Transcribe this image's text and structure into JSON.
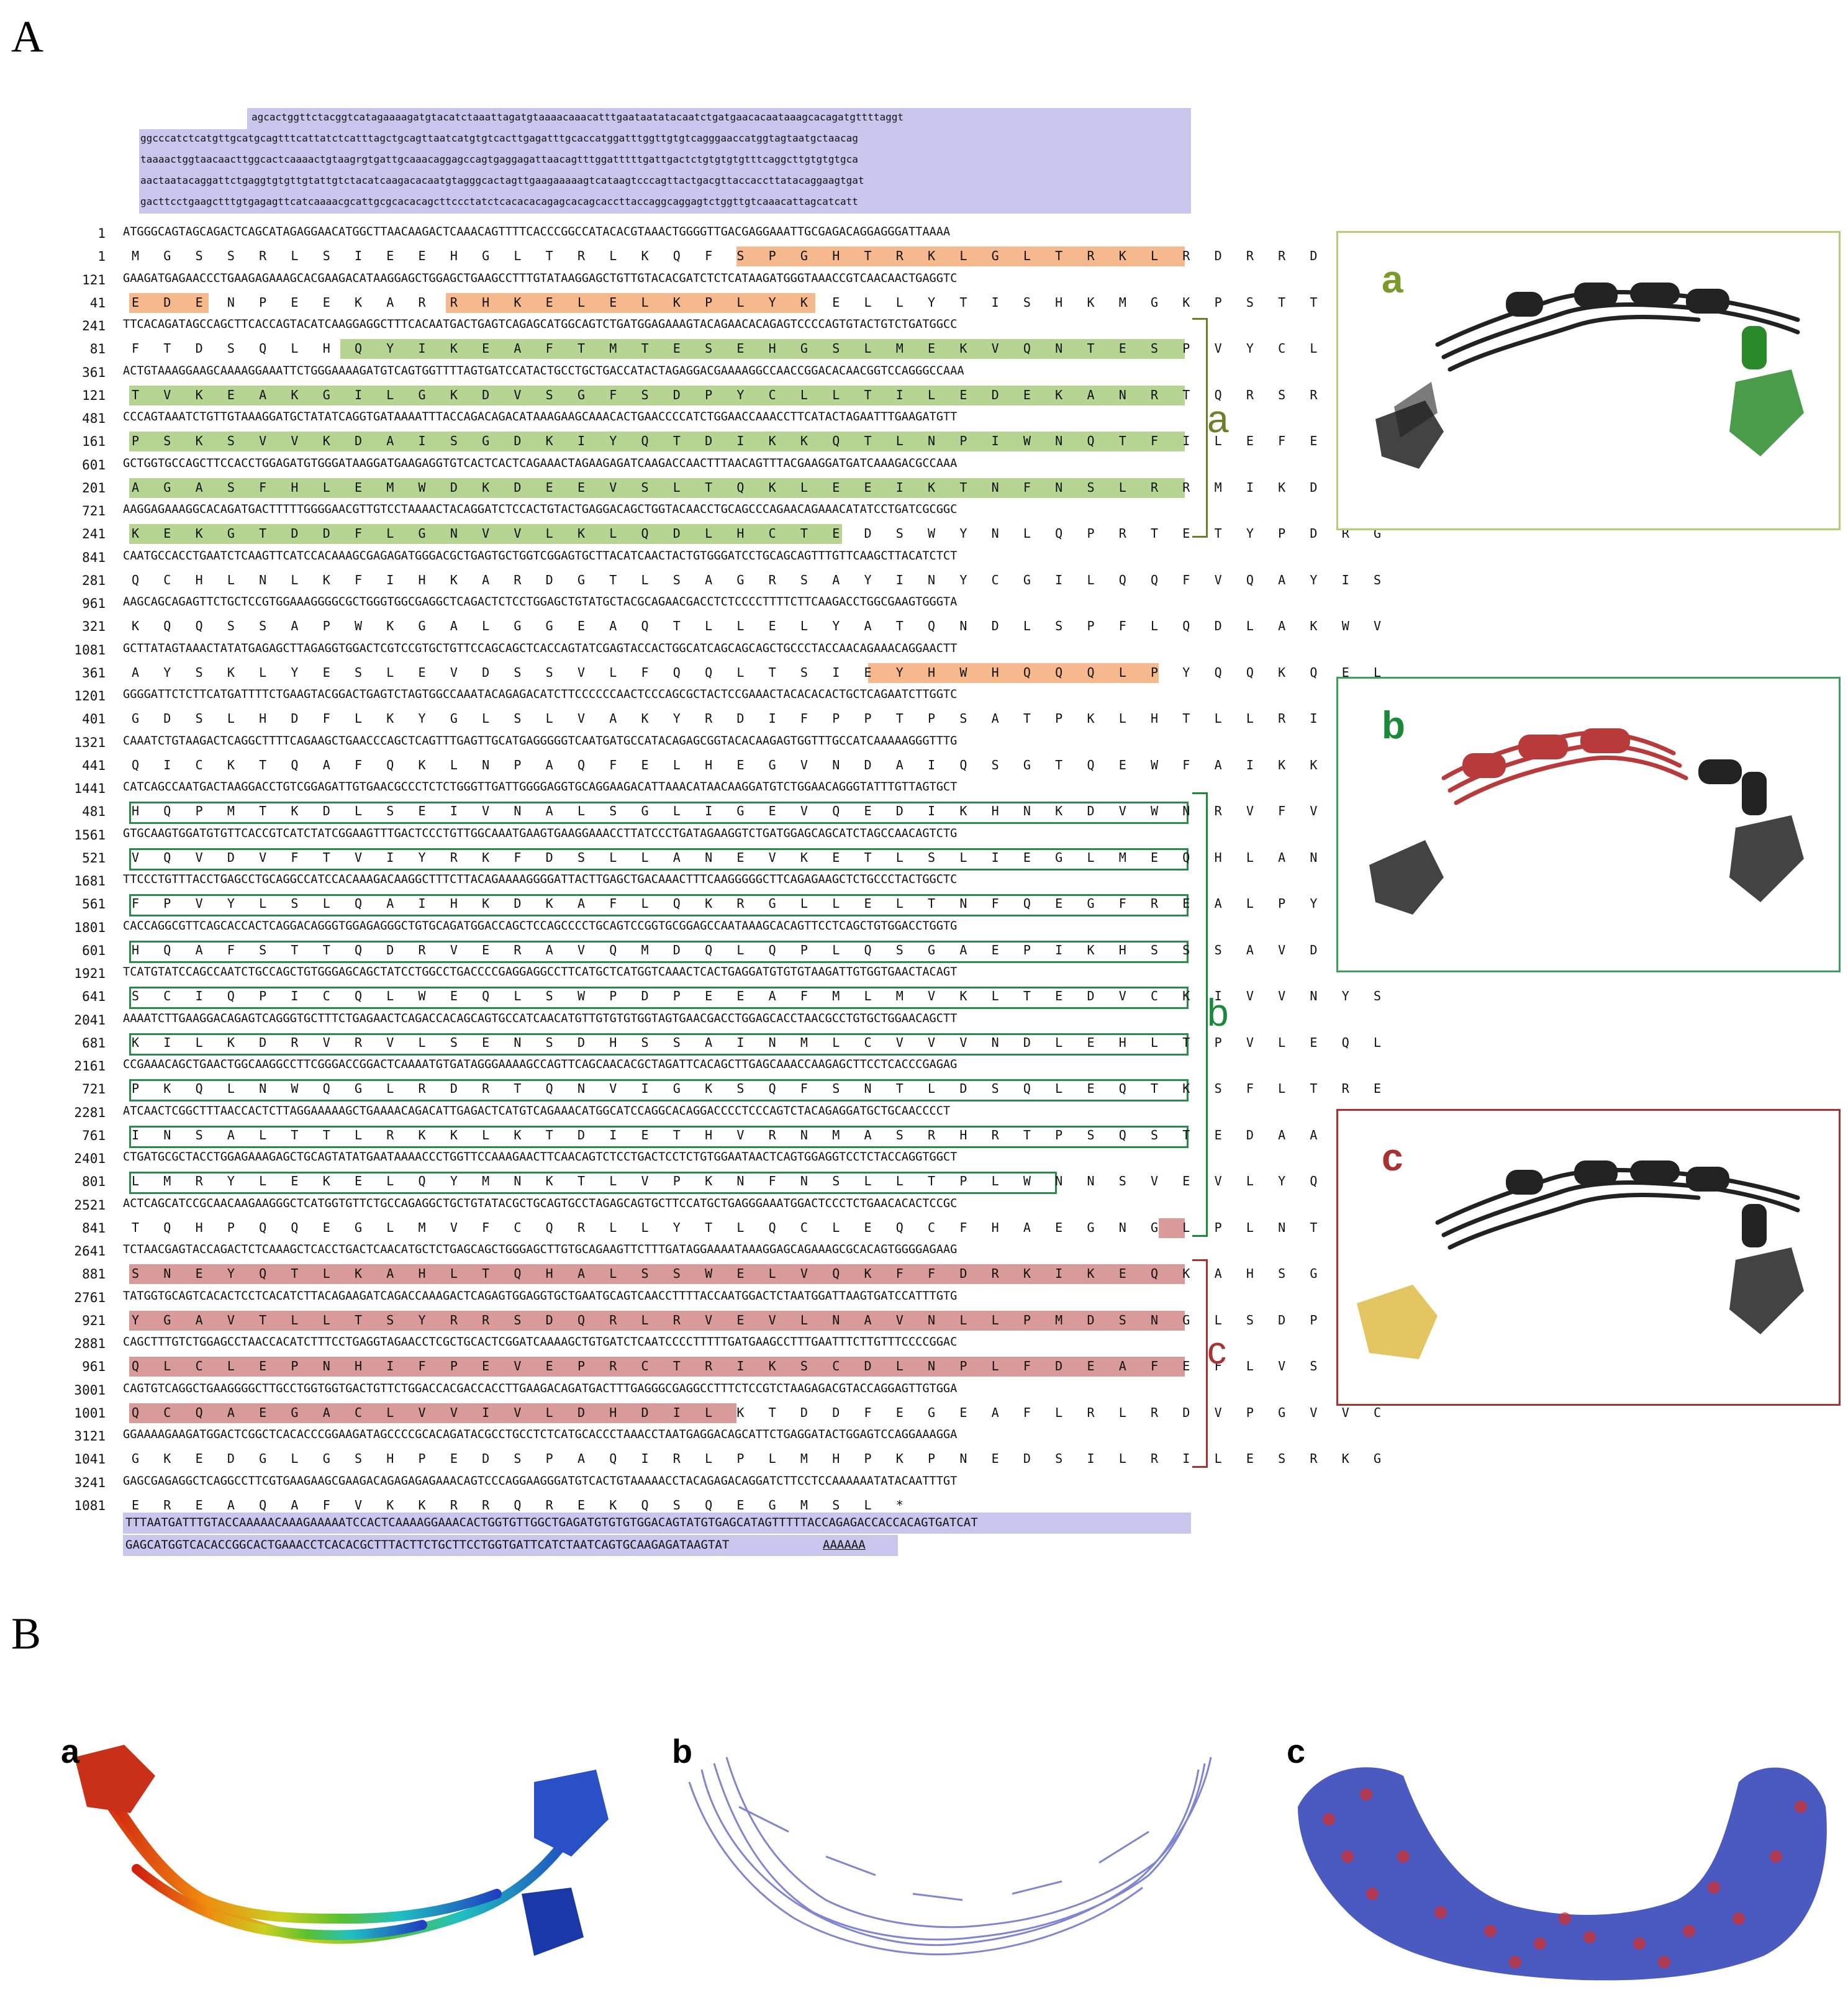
{
  "panels": {
    "A": "A",
    "B": "B"
  },
  "utr5": [
    "agcactggttctacggtcatagaaaagatgtacatctaaattagatgtaaaacaaacatttgaataatatacaatctgatgaacacaataaagcacagatgttttaggt",
    "ggcccatctcatgttgcatgcagtttcattatctcatttagctgcagttaatcatgtgtcacttgagatttgcaccatggatttggttgtgtcagggaaccatggtagtaatgctaacag",
    "taaaactggtaacaacttggcactcaaaactgtaagrgtgattgcaaacaggagccagtgaggagattaacagtttggatttttgattgactctgtgtgtgtttcaggcttgtgtgtgca",
    "aactaatacaggattctgaggtgtgttgtattgtctacatcaagacacaatgtagggcactagttgaagaaaaagtcataagtcccagttactgacgttaccaccttatacaggaagtgat",
    "gacttcctgaagctttgtgagagttcatcaaaacgcattgcgcacacagcttccctatctcacacacagagcacagcaccttaccaggcaggagtctggttgtcaaacattagcatcatt"
  ],
  "seq_rows": [
    {
      "n": "1",
      "t": "ATGGGCAGTAGCAGACTCAGCATAGAGGAACATGGCTTAACAAGACTCAAACAGTTTTCACCCGGCCATACACGTAAACTGGGGTTGACGAGGAAATTGCGAGACAGGAGGGATTAAAA",
      "aa": false
    },
    {
      "n": "1",
      "t": "M G S S R L S I E E H G L T R L K Q F S P G H T R K L G L T R K L R D R R D L K",
      "aa": true
    },
    {
      "n": "121",
      "t": "GAAGATGAGAACCCTGAAGAGAAAGCACGAAGACATAAGGAGCTGGAGCTGAAGCCTTTGTATAAGGAGCTGTTGTACACGATCTCTCATAAGATGGGTAAACCGTCAACAACTGAGGTC",
      "aa": false
    },
    {
      "n": "41",
      "t": "E D E N P E E K A R R H K E L E L K P L Y K E L L Y T I S H K M G K P S T T E V",
      "aa": true
    },
    {
      "n": "241",
      "t": "TTCACAGATAGCCAGCTTCACCAGTACATCAAGGAGGCTTTCACAATGACTGAGTCAGAGCATGGCAGTCTGATGGAGAAAGTACAGAACACAGAGTCCCCAGTGTACTGTCTGATGGCC",
      "aa": false
    },
    {
      "n": "81",
      "t": "F T D S Q L H Q Y I K E A F T M T E S E H G S L M E K V Q N T E S P V Y C L M A",
      "aa": true
    },
    {
      "n": "361",
      "t": "ACTGTAAAGGAAGCAAAAGGAAATTCTGGGAAAAGATGTCAGTGGTTTTAGTGATCCATACTGCCTGCTGACCATACTAGAGGACGAAAAGGCCAACCGGACACAACGGTCCAGGGCCAAA",
      "aa": false
    },
    {
      "n": "121",
      "t": "T V K E A K G I L G K D V S G F S D P Y C L L T I L E D E K A N R T Q R S R A K",
      "aa": true
    },
    {
      "n": "481",
      "t": "CCCAGTAAATCTGTTGTAAAGGATGCTATATCAGGTGATAAAATTTACCAGACAGACATAAAGAAGCAAACACTGAACCCCATCTGGAACCAAACCTTCATACTAGAATTTGAAGATGTT",
      "aa": false
    },
    {
      "n": "161",
      "t": "P S K S V V K D A I S G D K I Y Q T D I K K Q T L N P I W N Q T F I L E F E D V",
      "aa": true
    },
    {
      "n": "601",
      "t": "GCTGGTGCCAGCTTCCACCTGGAGATGTGGGATAAGGATGAAGAGGTGTCACTCACTCAGAAACTAGAAGAGATCAAGACCAACTTTAACAGTTTACGAAGGATGATCAAAGACGCCAAA",
      "aa": false
    },
    {
      "n": "201",
      "t": "A G A S F H L E M W D K D E E V S L T Q K L E E I K T N F N S L R R M I K D A K",
      "aa": true
    },
    {
      "n": "721",
      "t": "AAGGAGAAAGGCACAGATGACTTTTTGGGGAACGTTGTCCTAAAACTACAGGATCTCCACTGTACTGAGGACAGCTGGTACAACCTGCAGCCCAGAACAGAAACATATCCTGATCGCGGC",
      "aa": false
    },
    {
      "n": "241",
      "t": "K E K G T D D F L G N V V L K L Q D L H C T E D S W Y N L Q P R T E T Y P D R G",
      "aa": true
    },
    {
      "n": "841",
      "t": "CAATGCCACCTGAATCTCAAGTTCATCCACAAAGCGAGAGATGGGACGCTGAGTGCTGGTCGGAGTGCTTACATCAACTACTGTGGGATCCTGCAGCAGTTTGTTCAAGCTTACATCTCT",
      "aa": false
    },
    {
      "n": "281",
      "t": "Q C H L N L K F I H K A R D G T L S A G R S A Y I N Y C G I L Q Q F V Q A Y I S",
      "aa": true
    },
    {
      "n": "961",
      "t": "AAGCAGCAGAGTTCTGCTCCGTGGAAAGGGGCGCTGGGTGGCGAGGCTCAGACTCTCCTGGAGCTGTATGCTACGCAGAACGACCTCTCCCCTTTTCTTCAAGACCTGGCGAAGTGGGTA",
      "aa": false
    },
    {
      "n": "321",
      "t": "K Q Q S S A P W K G A L G G E A Q T L L E L Y A T Q N D L S P F L Q D L A K W V",
      "aa": true
    },
    {
      "n": "1081",
      "t": "GCTTATAGTAAACTATATGAGAGCTTAGAGGTGGACTCGTCCGTGCTGTTCCAGCAGCTCACCAGTATCGAGTACCACTGGCATCAGCAGCAGCTGCCCTACCAACAGAAACAGGAACTT",
      "aa": false
    },
    {
      "n": "361",
      "t": "A Y S K L Y E S L E V D S S V L F Q Q L T S I E Y H W H Q Q Q L P Y Q Q K Q E L",
      "aa": true
    },
    {
      "n": "1201",
      "t": "GGGGATTCTCTTCATGATTTTCTGAAGTACGGACTGAGTCTAGTGGCCAAATACAGAGACATCTTCCCCCCAACTCCCAGCGCTACTCCGAAACTACACACACTGCTCAGAATCTTGGTC",
      "aa": false
    },
    {
      "n": "401",
      "t": "G D S L H D F L K Y G L S L V A K Y R D I F P P T P S A T P K L H T L L R I L V",
      "aa": true
    },
    {
      "n": "1321",
      "t": "CAAATCTGTAAGACTCAGGCTTTTCAGAAGCTGAACCCAGCTCAGTTTGAGTTGCATGAGGGGGTCAATGATGCCATACAGAGCGGTACACAAGAGTGGTTTGCCATCAAAAAGGGTTTG",
      "aa": false
    },
    {
      "n": "441",
      "t": "Q I C K T Q A F Q K L N P A Q F E L H E G V N D A I Q S G T Q E W F A I K K G L",
      "aa": true
    },
    {
      "n": "1441",
      "t": "CATCAGCCAATGACTAAGGACCTGTCGGAGATTGTGAACGCCCTCTCTGGGTTGATTGGGGAGGTGCAGGAAGACATTAAACATAACAAGGATGTCTGGAACAGGGTATTTGTTAGTGCT",
      "aa": false
    },
    {
      "n": "481",
      "t": "H Q P M T K D L S E I V N A L S G L I G E V Q E D I K H N K D V W N R V F V S A",
      "aa": true
    },
    {
      "n": "1561",
      "t": "GTGCAAGTGGATGTGTTCACCGTCATCTATCGGAAGTTTGACTCCCTGTTGGCAAATGAAGTGAAGGAAACCTTATCCCTGATAGAAGGTCTGATGGAGCAGCATCTAGCCAACAGTCTG",
      "aa": false
    },
    {
      "n": "521",
      "t": "V Q V D V F T V I Y R K F D S L L A N E V K E T L S L I E G L M E Q H L A N S L",
      "aa": true
    },
    {
      "n": "1681",
      "t": "TTCCCTGTTTACCTGAGCCTGCAGGCCATCCACAAAGACAAGGCTTTCTTACAGAAAAGGGGATTACTTGAGCTGACAAACTTTCAAGGGGGCTTCAGAGAAGCTCTGCCCTACTGGCTC",
      "aa": false
    },
    {
      "n": "561",
      "t": "F P V Y L S L Q A I H K D K A F L Q K R G L L E L T N F Q E G F R E A L P Y W L",
      "aa": true
    },
    {
      "n": "1801",
      "t": "CACCAGGCGTTCAGCACCACTCAGGACAGGGTGGAGAGGGCTGTGCAGATGGACCAGCTCCAGCCCCTGCAGTCCGGTGCGGAGCCAATAAAGCACAGTTCCTCAGCTGTGGACCTGGTG",
      "aa": false
    },
    {
      "n": "601",
      "t": "H Q A F S T T Q D R V E R A V Q M D Q L Q P L Q S G A E P I K H S S S A V D L V",
      "aa": true
    },
    {
      "n": "1921",
      "t": "TCATGTATCCAGCCAATCTGCCAGCTGTGGGAGCAGCTATCCTGGCCTGACCCCGAGGAGGCCTTCATGCTCATGGTCAAACTCACTGAGGATGTGTGTAAGATTGTGGTGAACTACAGT",
      "aa": false
    },
    {
      "n": "641",
      "t": "S C I Q P I C Q L W E Q L S W P D P E E A F M L M V K L T E D V C K I V V N Y S",
      "aa": true
    },
    {
      "n": "2041",
      "t": "AAAATCTTGAAGGACAGAGTCAGGGTGCTTTCTGAGAACTCAGACCACAGCAGTGCCATCAACATGTTGTGTGTGGTAGTGAACGACCTGGAGCACCTAACGCCTGTGCTGGAACAGCTT",
      "aa": false
    },
    {
      "n": "681",
      "t": "K I L K D R V R V L S E N S D H S S A I N M L C V V V N D L E H L T P V L E Q L",
      "aa": true
    },
    {
      "n": "2161",
      "t": "CCGAAACAGCTGAACTGGCAAGGCCTTCGGGACCGGACTCAAAATGTGATAGGGAAAAGCCAGTTCAGCAACACGCTAGATTCACAGCTTGAGCAAACCAAGAGCTTCCTCACCCGAGAG",
      "aa": false
    },
    {
      "n": "721",
      "t": "P K Q L N W Q G L R D R T Q N V I G K S Q F S N T L D S Q L E Q T K S F L T R E",
      "aa": true
    },
    {
      "n": "2281",
      "t": "ATCAACTCGGCTTTAACCACTCTTAGGAAAAAGCTGAAAACAGACATTGAGACTCATGTCAGAAACATGGCATCCAGGCACAGGACCCCTCCCAGTCTACAGAGGATGCTGCAACCCCT",
      "aa": false
    },
    {
      "n": "761",
      "t": "I N S A L T T L R K K L K T D I E T H V R N M A S R H R T P S Q S T E D A A T P",
      "aa": true
    },
    {
      "n": "2401",
      "t": "CTGATGCGCTACCTGGAGAAAGAGCTGCAGTATATGAATAAAACCCTGGTTCCAAAGAACTTCAACAGTCTCCTGACTCCTCTGTGGAATAACTCAGTGGAGGTCCTCTACCAGGTGGCT",
      "aa": false
    },
    {
      "n": "801",
      "t": "L M R Y L E K E L Q Y M N K T L V P K N F N S L L T P L W N N S V E V L Y Q V A",
      "aa": true
    },
    {
      "n": "2521",
      "t": "ACTCAGCATCCGCAACAAGAAGGGCTCATGGTGTTCTGCCAGAGGCTGCTGTATACGCTGCAGTGCCTAGAGCAGTGCTTCCATGCTGAGGGAAATGGACTCCCTCTGAACACACTCCGC",
      "aa": false
    },
    {
      "n": "841",
      "t": "T Q H P Q Q E G L M V F C Q R L L Y T L Q C L E Q C F H A E G N G L P L N T L R",
      "aa": true
    },
    {
      "n": "2641",
      "t": "TCTAACGAGTACCAGACTCTCAAAGCTCACCTGACTCAACATGCTCTGAGCAGCTGGGAGCTTGTGCAGAAGTTCTTTGATAGGAAAATAAAGGAGCAGAAAGCGCACAGTGGGGAGAAG",
      "aa": false
    },
    {
      "n": "881",
      "t": "S N E Y Q T L K A H L T Q H A L S S W E L V Q K F F D R K I K E Q K A H S G E K",
      "aa": true
    },
    {
      "n": "2761",
      "t": "TATGGTGCAGTCACACTCCTCACATCTTACAGAAGATCAGACCAAAGACTCAGAGTGGAGGTGCTGAATGCAGTCAACCTTTTACCAATGGACTCTAATGGATTAAGTGATCCATTTGTG",
      "aa": false
    },
    {
      "n": "921",
      "t": "Y G A V T L L T S Y R R S D Q R L R V E V L N A V N L L P M D S N G L S D P F V",
      "aa": true
    },
    {
      "n": "2881",
      "t": "CAGCTTTGTCTGGAGCCTAACCACATCTTTCCTGAGGTAGAACCTCGCTGCACTCGGATCAAAAGCTGTGATCTCAATCCCCTTTTTGATGAAGCCTTTGAATTTCTTGTTTCCCCGGAC",
      "aa": false
    },
    {
      "n": "961",
      "t": "Q L C L E P N H I F P E V E P R C T R I K S C D L N P L F D E A F E F L V S P D",
      "aa": true
    },
    {
      "n": "3001",
      "t": "CAGTGTCAGGCTGAAGGGGCTTGCCTGGTGGTGACTGTTCTGGACCACGACCACCTTGAAGACAGATGACTTTGAGGGCGAGGCCTTTCTCCGTCTAAGAGACGTACCAGGAGTTGTGGA",
      "aa": false
    },
    {
      "n": "1001",
      "t": "Q C Q A E G A C L V V I V L D H D I L K T D D F E G E A F L R L R D V P G V V C",
      "aa": true
    },
    {
      "n": "3121",
      "t": "GGAAAAGAAGATGGACTCGGCTCACACCCGGAAGATAGCCCCGCACAGATACGCCTGCCTCTCATGCACCCTAAACCTAATGAGGACAGCATTCTGAGGATACTGGAGTCCAGGAAAGGA",
      "aa": false
    },
    {
      "n": "1041",
      "t": "G K E D G L G S H P E D S P A Q I R L P L M H P K P N E D S I L R I L E S R K G",
      "aa": true
    },
    {
      "n": "3241",
      "t": "GAGCGAGAGGCTCAGGCCTTCGTGAAGAAGCGAAGACAGAGAGAGAAACAGTCCCAGGAAGGGATGTCACTGTAAAAACCTACAGAGACAGGATCTTCCTCCAAAAAATATACAATTTGT",
      "aa": false
    },
    {
      "n": "1081",
      "t": "E R E A Q A F V K K R R Q R E K Q S Q E G M S L *",
      "aa": true
    }
  ],
  "utr3": [
    "TTTAATGATTTGTACCAAAAACAAAGAAAAATCCACTCAAAAGGAAACACTGGTGTTGGCTGAGATGTGTGTGGACAGTATGTGAGCATAGTTTTTACCAGAGACCACCACAGTGATCAT",
    "GAGCATGGTCACACCGGCACTGAAACCTCACACGCTTTACTTCTGCTTCCTGGTGATTCATCTAATCAGTGCAAGAGATAAGTAT",
    "AAAAAA"
  ],
  "stop_codon": "TAA",
  "brackets": {
    "a": "a",
    "b": "b",
    "c": "c"
  },
  "structure_boxes": [
    {
      "label": "a",
      "color": "#7a9a2a"
    },
    {
      "label": "b",
      "color": "#1a8a3a"
    },
    {
      "label": "c",
      "color": "#a83232"
    }
  ],
  "panel_b": [
    {
      "label": "a"
    },
    {
      "label": "b"
    },
    {
      "label": "c"
    }
  ],
  "colors": {
    "utr": "#c9c6ee",
    "orange": "#f6b98d",
    "green_fill": "#b7d592",
    "green_box": "#2a8a4a",
    "red_fill": "#d99a9a",
    "bracket_a": "#6e7f2a",
    "bracket_b": "#1a8a3a",
    "bracket_c": "#a83232"
  }
}
